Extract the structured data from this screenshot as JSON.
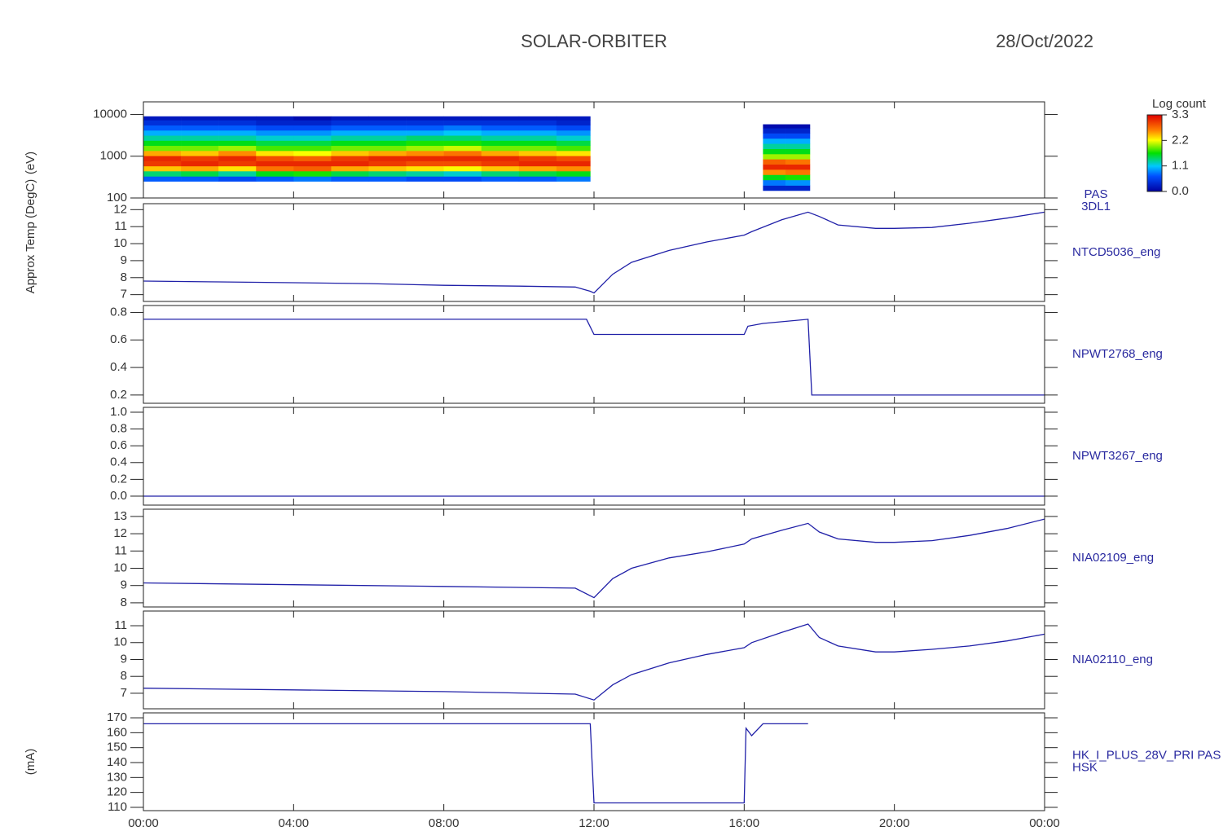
{
  "title": "SOLAR-ORBITER",
  "date": "28/Oct/2022",
  "xlim": [
    0,
    24
  ],
  "xticks": [
    {
      "value": 0,
      "label": "00:00"
    },
    {
      "value": 4,
      "label": "04:00"
    },
    {
      "value": 8,
      "label": "08:00"
    },
    {
      "value": 12,
      "label": "12:00"
    },
    {
      "value": 16,
      "label": "16:00"
    },
    {
      "value": 20,
      "label": "20:00"
    },
    {
      "value": 24,
      "label": "00:00"
    }
  ],
  "colorbar": {
    "title": "Log count",
    "clim": [
      0,
      3.3
    ],
    "ticks": [
      {
        "value": 0,
        "label": "0.0"
      },
      1.1,
      2.2,
      3.3
    ]
  },
  "chart_data": [
    {
      "type": "spectrogram",
      "name_lines": [
        "PAS",
        "3DL1"
      ],
      "ylabel": "(eV)",
      "ylog": true,
      "ylim": [
        100,
        20000
      ],
      "yticks": [
        100,
        1000,
        10000
      ],
      "blocks": [
        {
          "time_edges": [
            0,
            1,
            2,
            3,
            4,
            5,
            6,
            7,
            8,
            9,
            10,
            11,
            11.9
          ],
          "energy_edges": [
            250,
            330,
            440,
            580,
            770,
            1020,
            1350,
            1790,
            2370,
            3140,
            4160,
            5510,
            7300,
            9000
          ],
          "counts": [
            [
              0.7,
              1.4,
              2.4,
              3.0,
              3.1,
              2.5,
              1.9,
              1.6,
              1.3,
              1.0,
              0.7,
              0.4,
              0.2
            ],
            [
              0.7,
              1.5,
              2.5,
              3.1,
              3.0,
              2.4,
              1.9,
              1.6,
              1.3,
              1.0,
              0.7,
              0.4,
              0.2
            ],
            [
              0.6,
              1.3,
              2.3,
              3.0,
              3.1,
              2.6,
              2.0,
              1.6,
              1.3,
              1.0,
              0.7,
              0.4,
              0.2
            ],
            [
              0.7,
              1.6,
              2.7,
              3.1,
              2.9,
              2.3,
              1.8,
              1.5,
              1.2,
              0.9,
              0.6,
              0.3,
              0.2
            ],
            [
              0.8,
              1.7,
              2.8,
              3.1,
              2.8,
              2.2,
              1.8,
              1.5,
              1.2,
              0.9,
              0.6,
              0.3,
              0.1
            ],
            [
              0.7,
              1.5,
              2.5,
              3.1,
              3.0,
              2.4,
              1.9,
              1.6,
              1.3,
              1.0,
              0.7,
              0.4,
              0.2
            ],
            [
              0.7,
              1.4,
              2.4,
              3.0,
              3.1,
              2.5,
              1.9,
              1.6,
              1.3,
              1.0,
              0.7,
              0.4,
              0.2
            ],
            [
              0.6,
              1.3,
              2.3,
              2.9,
              3.1,
              2.6,
              2.0,
              1.7,
              1.4,
              1.0,
              0.7,
              0.4,
              0.2
            ],
            [
              0.6,
              1.2,
              2.2,
              2.9,
              3.1,
              2.7,
              2.1,
              1.7,
              1.4,
              1.1,
              0.8,
              0.4,
              0.2
            ],
            [
              0.7,
              1.4,
              2.4,
              3.0,
              3.1,
              2.5,
              1.9,
              1.6,
              1.3,
              1.0,
              0.7,
              0.4,
              0.2
            ],
            [
              0.7,
              1.5,
              2.5,
              3.1,
              3.0,
              2.4,
              1.9,
              1.6,
              1.3,
              1.0,
              0.7,
              0.4,
              0.2
            ],
            [
              0.8,
              1.6,
              2.6,
              3.1,
              2.9,
              2.3,
              1.8,
              1.5,
              1.2,
              0.9,
              0.6,
              0.3,
              0.2
            ]
          ]
        },
        {
          "time_edges": [
            16.5,
            17.1,
            17.75
          ],
          "energy_edges": [
            150,
            200,
            270,
            360,
            480,
            640,
            850,
            1130,
            1500,
            2000,
            2660,
            3540,
            4700,
            5800
          ],
          "counts": [
            [
              0.3,
              0.8,
              1.6,
              2.6,
              3.1,
              2.8,
              2.0,
              1.6,
              1.3,
              1.0,
              0.6,
              0.3,
              0.1
            ],
            [
              0.3,
              0.9,
              1.7,
              2.7,
              3.1,
              2.7,
              2.0,
              1.6,
              1.3,
              1.0,
              0.6,
              0.3,
              0.1
            ]
          ]
        }
      ]
    },
    {
      "type": "line",
      "name_lines": [
        "NTCD5036_eng"
      ],
      "ylabel": "Approx Temp (DegC)",
      "color": "#2020a8",
      "ylim": [
        6.6,
        12.35
      ],
      "yticks": [
        7,
        8,
        9,
        10,
        11,
        12
      ],
      "x": [
        0,
        2,
        4,
        6,
        8,
        10,
        11.5,
        11.9,
        12,
        12.5,
        13,
        14,
        15,
        16,
        16.2,
        17,
        17.7,
        18,
        18.5,
        19.5,
        20,
        21,
        22,
        23,
        24
      ],
      "values": [
        7.8,
        7.75,
        7.7,
        7.65,
        7.55,
        7.5,
        7.45,
        7.2,
        7.1,
        8.2,
        8.9,
        9.6,
        10.1,
        10.5,
        10.7,
        11.4,
        11.85,
        11.6,
        11.1,
        10.9,
        10.9,
        10.95,
        11.2,
        11.5,
        11.85
      ]
    },
    {
      "type": "line",
      "name_lines": [
        "NPWT2768_eng"
      ],
      "color": "#2020a8",
      "ylim": [
        0.14,
        0.85
      ],
      "yticks": [
        0.2,
        0.4,
        0.6,
        0.8
      ],
      "x": [
        0,
        11.8,
        12,
        16,
        16.1,
        16.5,
        17.7,
        17.8,
        24
      ],
      "values": [
        0.75,
        0.75,
        0.64,
        0.64,
        0.7,
        0.72,
        0.75,
        0.2,
        0.2
      ]
    },
    {
      "type": "line",
      "name_lines": [
        "NPWT3267_eng"
      ],
      "color": "#2020a8",
      "ylim": [
        -0.107,
        1.058
      ],
      "yticks": [
        {
          "value": 0,
          "label": "0.0"
        },
        0.2,
        0.4,
        0.6,
        0.8,
        {
          "value": 1,
          "label": "1.0"
        }
      ],
      "x": [
        0,
        24
      ],
      "values": [
        0,
        0
      ]
    },
    {
      "type": "line",
      "name_lines": [
        "NIA02109_eng"
      ],
      "color": "#2020a8",
      "ylim": [
        7.76,
        13.42
      ],
      "yticks": [
        8,
        9,
        10,
        11,
        12,
        13
      ],
      "x": [
        0,
        4,
        8,
        11.5,
        12,
        12.5,
        13,
        14,
        15,
        16,
        16.2,
        17,
        17.7,
        18,
        18.5,
        19.5,
        20,
        21,
        22,
        23,
        24
      ],
      "values": [
        9.15,
        9.05,
        8.95,
        8.85,
        8.3,
        9.4,
        10.0,
        10.6,
        10.95,
        11.4,
        11.7,
        12.2,
        12.6,
        12.1,
        11.7,
        11.5,
        11.5,
        11.6,
        11.9,
        12.3,
        12.85
      ]
    },
    {
      "type": "line",
      "name_lines": [
        "NIA02110_eng"
      ],
      "color": "#2020a8",
      "ylim": [
        6.08,
        11.87
      ],
      "yticks": [
        7,
        8,
        9,
        10,
        11
      ],
      "x": [
        0,
        4,
        8,
        11.5,
        12,
        12.5,
        13,
        14,
        15,
        16,
        16.2,
        17,
        17.7,
        18,
        18.5,
        19.5,
        20,
        21,
        22,
        23,
        24
      ],
      "values": [
        7.3,
        7.2,
        7.1,
        6.95,
        6.6,
        7.5,
        8.1,
        8.8,
        9.3,
        9.7,
        10.0,
        10.6,
        11.1,
        10.3,
        9.8,
        9.45,
        9.45,
        9.6,
        9.8,
        10.1,
        10.5
      ]
    },
    {
      "type": "line",
      "name_lines": [
        "HK_I_PLUS_28V_PRI PAS",
        "HSK"
      ],
      "ylabel": "(mA)",
      "color": "#2020a8",
      "ylim": [
        107.8,
        173.3
      ],
      "yticks": [
        110,
        120,
        130,
        140,
        150,
        160,
        170
      ],
      "x": [
        0,
        11.9,
        12,
        16,
        16.05,
        16.2,
        16.5,
        17.7
      ],
      "values": [
        166,
        166,
        113,
        113,
        163,
        158,
        166,
        166
      ]
    }
  ]
}
